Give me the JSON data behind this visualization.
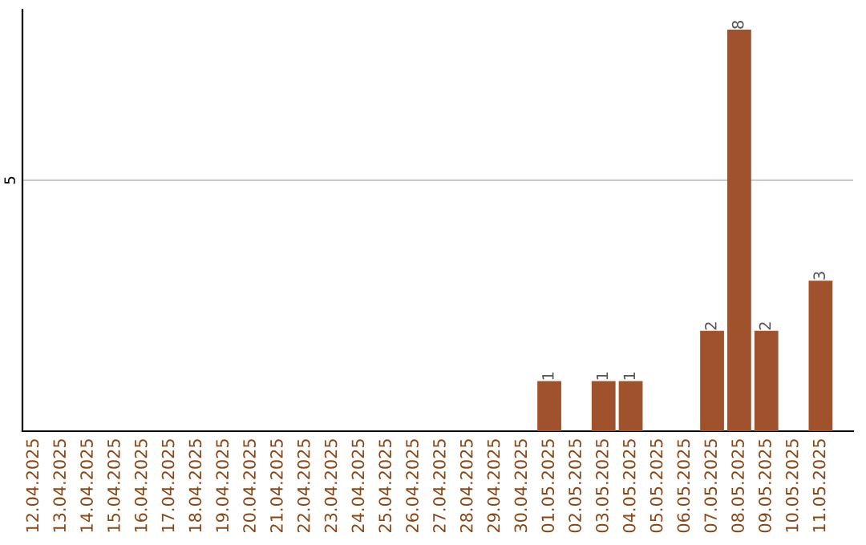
{
  "chart_data": {
    "type": "bar",
    "categories": [
      "12.04.2025",
      "13.04.2025",
      "14.04.2025",
      "15.04.2025",
      "16.04.2025",
      "17.04.2025",
      "18.04.2025",
      "19.04.2025",
      "20.04.2025",
      "21.04.2025",
      "22.04.2025",
      "23.04.2025",
      "24.04.2025",
      "25.04.2025",
      "26.04.2025",
      "27.04.2025",
      "28.04.2025",
      "29.04.2025",
      "30.04.2025",
      "01.05.2025",
      "02.05.2025",
      "03.05.2025",
      "04.05.2025",
      "05.05.2025",
      "06.05.2025",
      "07.05.2025",
      "08.05.2025",
      "09.05.2025",
      "10.05.2025",
      "11.05.2025"
    ],
    "values": [
      null,
      null,
      null,
      null,
      null,
      null,
      null,
      null,
      null,
      null,
      null,
      null,
      null,
      null,
      null,
      null,
      null,
      null,
      null,
      1,
      null,
      1,
      1,
      null,
      null,
      2,
      8,
      2,
      null,
      3
    ],
    "data_labels": true,
    "color": "#a0522d",
    "ylim": [
      0,
      8.4
    ],
    "ref_lines": [
      {
        "axis": "y",
        "value": 5,
        "label": "5",
        "color": "#cccccc"
      }
    ]
  }
}
